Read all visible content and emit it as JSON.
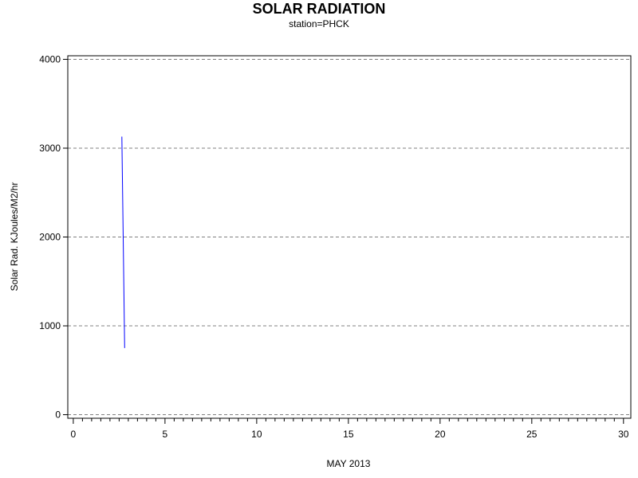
{
  "chart_data": {
    "type": "line",
    "title": "SOLAR RADIATION",
    "subtitle": "station=PHCK",
    "xlabel": "MAY 2013",
    "ylabel": "Solar Rad. KJoules/M2/hr",
    "xlim": [
      -0.3,
      30.4
    ],
    "ylim": [
      -40,
      4040
    ],
    "x_ticks": [
      0,
      5,
      10,
      15,
      20,
      25,
      30
    ],
    "y_ticks": [
      0,
      1000,
      2000,
      3000,
      4000
    ],
    "x_minor_step": 0.5,
    "grid": "horizontal-dashed",
    "series": [
      {
        "color": "#0000ff",
        "points": [
          {
            "x": 2.65,
            "y": 3130
          },
          {
            "x": 2.8,
            "y": 750
          }
        ]
      }
    ]
  }
}
